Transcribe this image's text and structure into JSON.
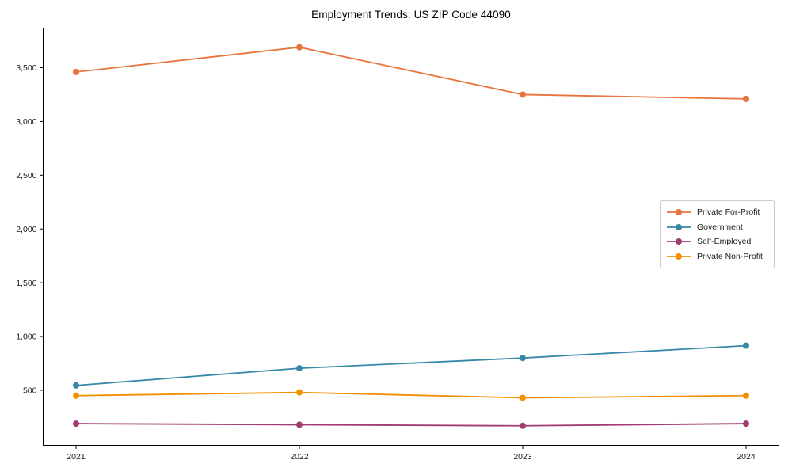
{
  "chart_data": {
    "type": "line",
    "title": "Employment Trends: US ZIP Code 44090",
    "x": [
      "2021",
      "2022",
      "2023",
      "2024"
    ],
    "series": [
      {
        "name": "Private For-Profit",
        "color": "#E8743B",
        "values": [
          3460,
          3690,
          3250,
          3210
        ]
      },
      {
        "name": "Government",
        "color": "#3787A8",
        "values": [
          545,
          705,
          800,
          915
        ]
      },
      {
        "name": "Self-Employed",
        "color": "#A23B72",
        "values": [
          190,
          180,
          170,
          190
        ]
      },
      {
        "name": "Private Non-Profit",
        "color": "#F18F01",
        "values": [
          450,
          480,
          430,
          450
        ]
      }
    ],
    "ylim": [
      -12,
      3868
    ],
    "yticks": [
      500,
      1000,
      1500,
      2000,
      2500,
      3000,
      3500
    ],
    "xlabel": "",
    "ylabel": "",
    "grid": false,
    "legend_position": "center-right",
    "axis_color": "#000000",
    "tick_label_color": "#1a1a1a",
    "background": "#ffffff"
  }
}
